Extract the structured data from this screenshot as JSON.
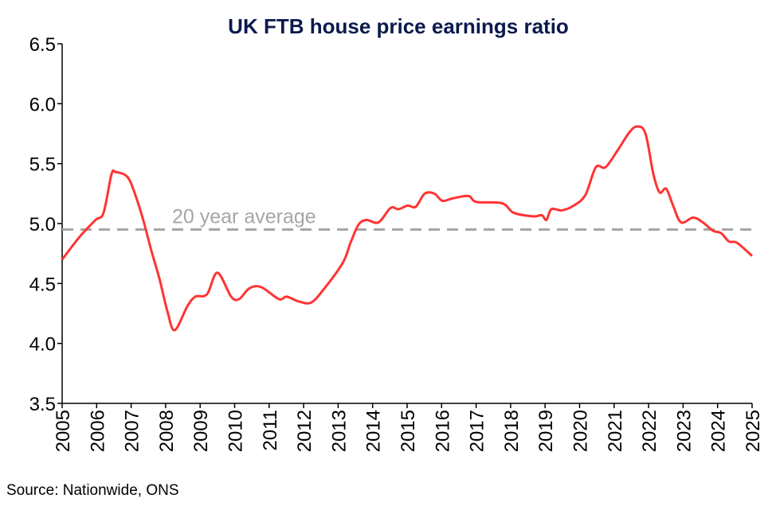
{
  "chart_data": {
    "type": "line",
    "title": "UK FTB house price earnings ratio",
    "source": "Source: Nationwide, ONS",
    "xlim": [
      2005,
      2025
    ],
    "ylim": [
      3.5,
      6.5
    ],
    "yticks": [
      "3.5",
      "4.0",
      "4.5",
      "5.0",
      "5.5",
      "6.0",
      "6.5"
    ],
    "xticks": [
      "2005",
      "2006",
      "2007",
      "2008",
      "2009",
      "2010",
      "2011",
      "2012",
      "2013",
      "2014",
      "2015",
      "2016",
      "2017",
      "2018",
      "2019",
      "2020",
      "2021",
      "2022",
      "2023",
      "2024",
      "2025"
    ],
    "grid": false,
    "series": [
      {
        "color": "#ff3333",
        "x": [
          2005.0,
          2005.51,
          2005.97,
          2006.2,
          2006.43,
          2006.55,
          2006.89,
          2007.12,
          2007.36,
          2007.59,
          2007.82,
          2008.05,
          2008.26,
          2008.63,
          2008.86,
          2009.2,
          2009.5,
          2009.9,
          2010.13,
          2010.43,
          2010.77,
          2011.28,
          2011.51,
          2011.86,
          2012.21,
          2012.55,
          2013.13,
          2013.36,
          2013.59,
          2013.82,
          2014.17,
          2014.52,
          2014.75,
          2015.02,
          2015.25,
          2015.51,
          2015.79,
          2016.02,
          2016.32,
          2016.78,
          2017.01,
          2017.75,
          2018.09,
          2018.67,
          2018.9,
          2019.04,
          2019.18,
          2019.48,
          2019.83,
          2020.17,
          2020.47,
          2020.75,
          2021.1,
          2021.44,
          2021.67,
          2021.91,
          2022.14,
          2022.32,
          2022.51,
          2022.71,
          2022.94,
          2023.29,
          2023.57,
          2023.87,
          2024.1,
          2024.33,
          2024.56,
          2025.0
        ],
        "y": [
          4.7,
          4.89,
          5.03,
          5.09,
          5.41,
          5.43,
          5.39,
          5.24,
          5.02,
          4.77,
          4.54,
          4.27,
          4.11,
          4.31,
          4.39,
          4.41,
          4.59,
          4.39,
          4.37,
          4.46,
          4.47,
          4.37,
          4.39,
          4.35,
          4.34,
          4.44,
          4.67,
          4.84,
          4.99,
          5.03,
          5.01,
          5.13,
          5.12,
          5.15,
          5.14,
          5.25,
          5.25,
          5.19,
          5.21,
          5.23,
          5.18,
          5.17,
          5.09,
          5.06,
          5.07,
          5.03,
          5.12,
          5.11,
          5.15,
          5.24,
          5.47,
          5.47,
          5.61,
          5.76,
          5.81,
          5.75,
          5.41,
          5.26,
          5.29,
          5.15,
          5.01,
          5.05,
          5.01,
          4.94,
          4.92,
          4.85,
          4.84,
          4.73
        ]
      }
    ],
    "reference_line": {
      "label": "20 year average",
      "value": 4.95,
      "color": "#a6a6a6",
      "style": "dashed"
    }
  }
}
